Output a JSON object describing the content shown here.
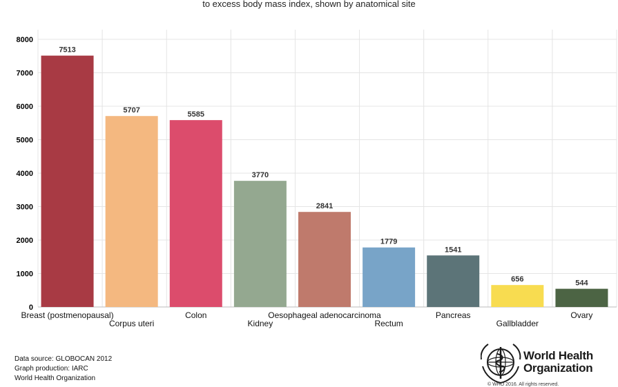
{
  "subtitle": "to excess body mass index, shown by anatomical site",
  "chart_data": {
    "type": "bar",
    "categories": [
      "Breast (postmenopausal)",
      "Corpus uteri",
      "Colon",
      "Kidney",
      "Oesophageal adenocarcinoma",
      "Rectum",
      "Pancreas",
      "Gallbladder",
      "Ovary"
    ],
    "values": [
      7513,
      5707,
      5585,
      3770,
      2841,
      1779,
      1541,
      656,
      544
    ],
    "colors": [
      "#a83a44",
      "#f4b880",
      "#dc4c6c",
      "#94a890",
      "#bf7a6c",
      "#78a4c8",
      "#5c7478",
      "#f8dc50",
      "#4c6444"
    ],
    "ylim": [
      0,
      8000
    ],
    "yticks": [
      0,
      1000,
      2000,
      3000,
      4000,
      5000,
      6000,
      7000,
      8000
    ],
    "grid": true
  },
  "footer": {
    "source": "Data source: GLOBOCAN 2012",
    "production": "Graph production: IARC",
    "org": "World Health Organization"
  },
  "logo": {
    "line1": "World Health",
    "line2": "Organization",
    "copyright": "© WHO 2016. All rights reserved."
  }
}
